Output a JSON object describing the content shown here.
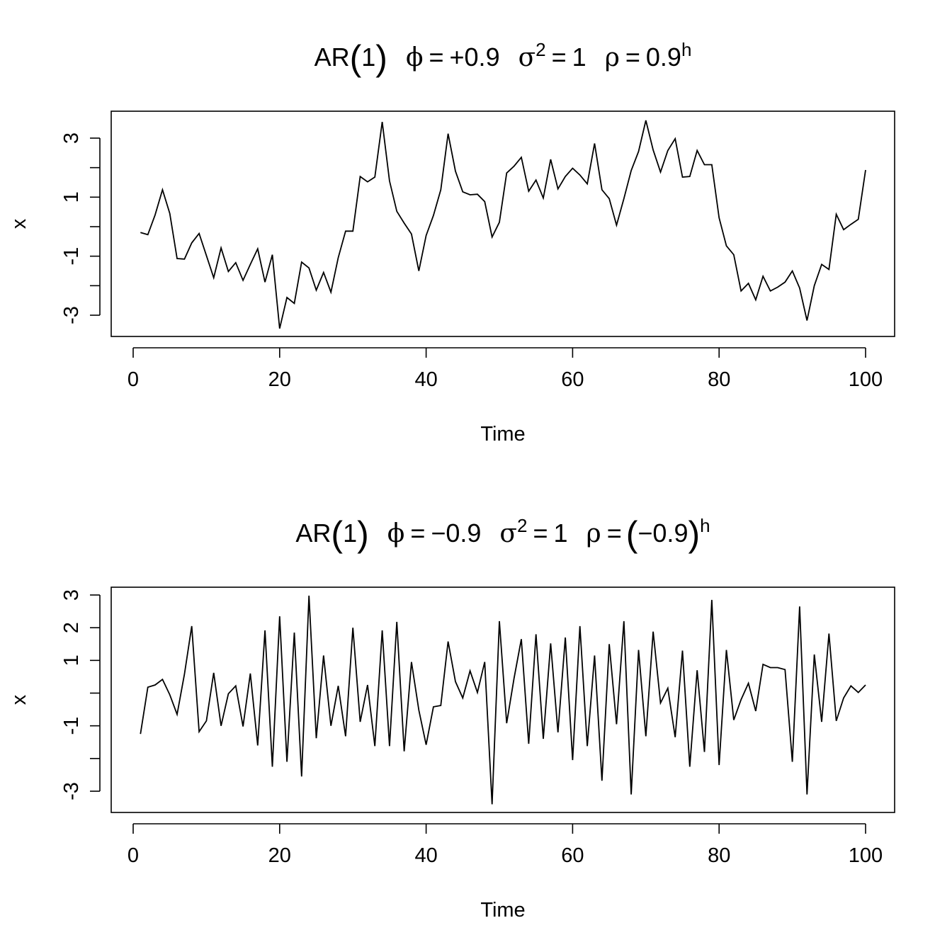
{
  "chart_data": [
    {
      "type": "line",
      "title_parts": {
        "ar": "AR",
        "order": "1",
        "phi_sym": "ϕ",
        "phi_val": "+0.9",
        "sigma_sym": "σ",
        "sigma_pow": "2",
        "sigma_val": "1",
        "rho_sym": "ρ",
        "rho_val": "0.9",
        "rho_pow": "h",
        "eq": "="
      },
      "xlabel": "Time",
      "ylabel": "x",
      "xlim": [
        1,
        100
      ],
      "ylim": [
        -3.4,
        3.6
      ],
      "xticks": [
        0,
        20,
        40,
        60,
        80,
        100
      ],
      "xtick_labels": [
        "0",
        "20",
        "40",
        "60",
        "80",
        "100"
      ],
      "yticks": [
        -3,
        -2,
        -1,
        0,
        1,
        2,
        3
      ],
      "ytick_labels": [
        "-3",
        "",
        "-1",
        "",
        "1",
        "",
        "3"
      ],
      "x": [
        1,
        2,
        3,
        4,
        5,
        6,
        7,
        8,
        9,
        10,
        11,
        12,
        13,
        14,
        15,
        16,
        17,
        18,
        19,
        20,
        21,
        22,
        23,
        24,
        25,
        26,
        27,
        28,
        29,
        30,
        31,
        32,
        33,
        34,
        35,
        36,
        37,
        38,
        39,
        40,
        41,
        42,
        43,
        44,
        45,
        46,
        47,
        48,
        49,
        50,
        51,
        52,
        53,
        54,
        55,
        56,
        57,
        58,
        59,
        60,
        61,
        62,
        63,
        64,
        65,
        66,
        67,
        68,
        69,
        70,
        71,
        72,
        73,
        74,
        75,
        76,
        77,
        78,
        79,
        80,
        81,
        82,
        83,
        84,
        85,
        86,
        87,
        88,
        89,
        90,
        91,
        92,
        93,
        94,
        95,
        96,
        97,
        98,
        99,
        100
      ],
      "series": [
        {
          "values": [
            -0.2,
            -0.27,
            0.4,
            1.25,
            0.45,
            -1.08,
            -1.1,
            -0.55,
            -0.23,
            -0.98,
            -1.73,
            -0.72,
            -1.52,
            -1.22,
            -1.82,
            -1.28,
            -0.75,
            -1.88,
            -0.95,
            -3.45,
            -2.4,
            -2.6,
            -1.2,
            -1.4,
            -2.15,
            -1.55,
            -2.22,
            -1.05,
            -0.15,
            -0.15,
            1.7,
            1.52,
            1.68,
            3.55,
            1.55,
            0.52,
            0.12,
            -0.25,
            -1.5,
            -0.3,
            0.38,
            1.25,
            3.15,
            1.88,
            1.18,
            1.08,
            1.1,
            0.85,
            -0.35,
            0.15,
            1.82,
            2.05,
            2.35,
            1.2,
            1.58,
            0.97,
            2.28,
            1.28,
            1.7,
            1.98,
            1.75,
            1.45,
            2.82,
            1.25,
            0.95,
            0.05,
            0.95,
            1.9,
            2.55,
            3.6,
            2.6,
            1.85,
            2.58,
            2.98,
            1.68,
            1.7,
            2.58,
            2.1,
            2.1,
            0.3,
            -0.65,
            -0.95,
            -2.18,
            -1.92,
            -2.48,
            -1.68,
            -2.18,
            -2.05,
            -1.88,
            -1.5,
            -2.08,
            -3.18,
            -2.0,
            -1.28,
            -1.45,
            0.42,
            -0.1,
            0.08,
            0.25,
            1.92
          ]
        }
      ]
    },
    {
      "type": "line",
      "title_parts": {
        "ar": "AR",
        "order": "1",
        "phi_sym": "ϕ",
        "phi_val": "−0.9",
        "sigma_sym": "σ",
        "sigma_pow": "2",
        "sigma_val": "1",
        "rho_sym": "ρ",
        "rho_val": "−0.9",
        "rho_pow": "h",
        "eq": "=",
        "lparen": "(",
        "rparen": ")"
      },
      "xlabel": "Time",
      "ylabel": "x",
      "xlim": [
        1,
        100
      ],
      "ylim": [
        -3.4,
        3.2
      ],
      "xticks": [
        0,
        20,
        40,
        60,
        80,
        100
      ],
      "xtick_labels": [
        "0",
        "20",
        "40",
        "60",
        "80",
        "100"
      ],
      "yticks": [
        -3,
        -2,
        -1,
        0,
        1,
        2,
        3
      ],
      "ytick_labels": [
        "-3",
        "",
        "-1",
        "",
        "1",
        "2",
        "3"
      ],
      "x": [
        1,
        2,
        3,
        4,
        5,
        6,
        7,
        8,
        9,
        10,
        11,
        12,
        13,
        14,
        15,
        16,
        17,
        18,
        19,
        20,
        21,
        22,
        23,
        24,
        25,
        26,
        27,
        28,
        29,
        30,
        31,
        32,
        33,
        34,
        35,
        36,
        37,
        38,
        39,
        40,
        41,
        42,
        43,
        44,
        45,
        46,
        47,
        48,
        49,
        50,
        51,
        52,
        53,
        54,
        55,
        56,
        57,
        58,
        59,
        60,
        61,
        62,
        63,
        64,
        65,
        66,
        67,
        68,
        69,
        70,
        71,
        72,
        73,
        74,
        75,
        76,
        77,
        78,
        79,
        80,
        81,
        82,
        83,
        84,
        85,
        86,
        87,
        88,
        89,
        90,
        91,
        92,
        93,
        94,
        95,
        96,
        97,
        98,
        99,
        100
      ],
      "series": [
        {
          "values": [
            -1.25,
            0.18,
            0.25,
            0.42,
            -0.05,
            -0.65,
            0.58,
            2.05,
            -1.18,
            -0.85,
            0.62,
            -1.0,
            -0.02,
            0.22,
            -1.02,
            0.6,
            -1.6,
            1.92,
            -2.25,
            2.35,
            -2.1,
            1.85,
            -2.55,
            2.98,
            -1.38,
            1.15,
            -1.0,
            0.22,
            -1.32,
            2.0,
            -0.88,
            0.25,
            -1.62,
            1.92,
            -1.62,
            2.18,
            -1.78,
            0.95,
            -0.52,
            -1.58,
            -0.42,
            -0.38,
            1.58,
            0.35,
            -0.15,
            0.68,
            0.02,
            0.95,
            -3.4,
            2.2,
            -0.92,
            0.45,
            1.65,
            -1.55,
            1.8,
            -1.4,
            1.52,
            -1.2,
            1.7,
            -2.05,
            2.05,
            -1.62,
            1.15,
            -2.68,
            1.5,
            -0.95,
            2.2,
            -3.1,
            1.32,
            -1.32,
            1.88,
            -0.3,
            0.15,
            -1.35,
            1.3,
            -2.25,
            0.7,
            -1.8,
            2.85,
            -2.2,
            1.32,
            -0.82,
            -0.2,
            0.3,
            -0.55,
            0.88,
            0.78,
            0.78,
            0.72,
            -2.1,
            2.65,
            -3.1,
            1.18,
            -0.88,
            1.82,
            -0.85,
            -0.15,
            0.22,
            0.02,
            0.25
          ]
        }
      ]
    }
  ]
}
